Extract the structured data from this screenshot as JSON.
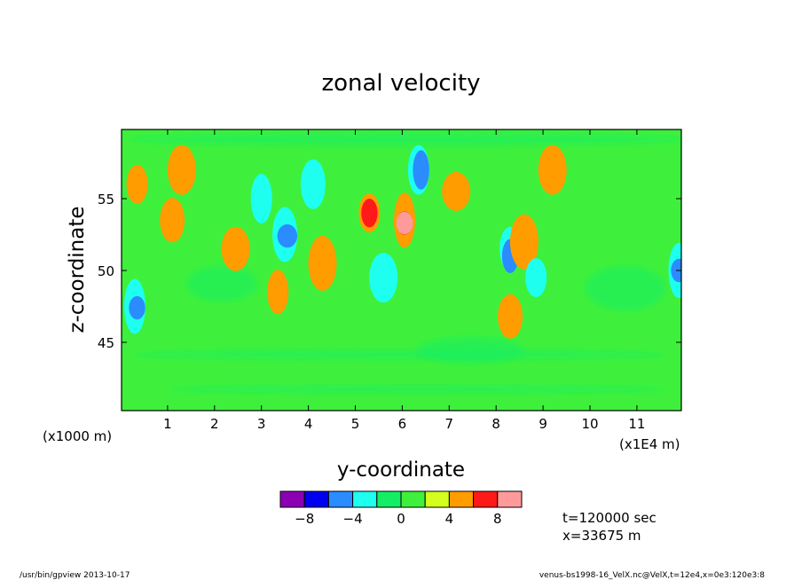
{
  "footer": {
    "left": "/usr/bin/gpview  2013-10-17",
    "right": "venus-bs1998-16_VelX.nc@VelX,t=12e4,x=0e3:120e3:8"
  },
  "chart_data": {
    "type": "heatmap",
    "title": "zonal velocity",
    "xlabel": "y-coordinate",
    "ylabel": "z-coordinate",
    "x_unit_left": "(x1000 m)",
    "x_unit_right": "(x1E4 m)",
    "x_ticks": [
      "1",
      "2",
      "3",
      "4",
      "5",
      "6",
      "7",
      "8",
      "9",
      "10",
      "11"
    ],
    "y_ticks": [
      "45",
      "50",
      "55"
    ],
    "ylim": [
      40,
      59.5
    ],
    "time_label": "t=120000 sec",
    "x_label_info": "x=33675 m",
    "colorbar": {
      "levels": [
        -10,
        -8,
        -6,
        -4,
        -2,
        0,
        2,
        4,
        6,
        8,
        10
      ],
      "tick_labels": [
        "-8",
        "-4",
        "0",
        "4",
        "8"
      ],
      "colors": [
        "#8c00b4",
        "#0000f0",
        "#2a8cff",
        "#1efff0",
        "#14ee64",
        "#3ef03c",
        "#d4ff1e",
        "#ff9c00",
        "#ff1a1a",
        "#ff9a9a"
      ]
    },
    "background_color": "#3ef03c",
    "features": [
      {
        "y": 0.35,
        "z": 56.0,
        "value": 4
      },
      {
        "y": 1.1,
        "z": 53.5,
        "value": 4
      },
      {
        "y": 1.3,
        "z": 57.0,
        "value": 4
      },
      {
        "y": 0.3,
        "z": 47.5,
        "value": -4
      },
      {
        "y": 0.35,
        "z": 47.4,
        "value": -6
      },
      {
        "y": 2.45,
        "z": 51.5,
        "value": 4
      },
      {
        "y": 3.0,
        "z": 55.0,
        "value": -4
      },
      {
        "y": 3.5,
        "z": 52.5,
        "value": -4
      },
      {
        "y": 3.55,
        "z": 52.4,
        "value": -6
      },
      {
        "y": 3.35,
        "z": 48.5,
        "value": 4
      },
      {
        "y": 4.1,
        "z": 56.0,
        "value": -4
      },
      {
        "y": 4.3,
        "z": 50.5,
        "value": 4
      },
      {
        "y": 5.3,
        "z": 54.0,
        "value": 4
      },
      {
        "y": 5.3,
        "z": 54.0,
        "value": 6
      },
      {
        "y": 5.6,
        "z": 49.5,
        "value": -4
      },
      {
        "y": 6.05,
        "z": 53.5,
        "value": 4
      },
      {
        "y": 6.05,
        "z": 53.3,
        "value": 6
      },
      {
        "y": 6.05,
        "z": 53.3,
        "value": 8
      },
      {
        "y": 6.35,
        "z": 57.0,
        "value": -4
      },
      {
        "y": 6.4,
        "z": 57.0,
        "value": -6
      },
      {
        "y": 7.15,
        "z": 55.5,
        "value": 4
      },
      {
        "y": 8.3,
        "z": 51.5,
        "value": -4
      },
      {
        "y": 8.3,
        "z": 51.0,
        "value": -6
      },
      {
        "y": 8.6,
        "z": 52.0,
        "value": 4
      },
      {
        "y": 8.85,
        "z": 49.5,
        "value": -4
      },
      {
        "y": 8.3,
        "z": 46.8,
        "value": 4
      },
      {
        "y": 9.2,
        "z": 57.0,
        "value": 4
      },
      {
        "y": 11.9,
        "z": 50.0,
        "value": -4
      },
      {
        "y": 11.9,
        "z": 50.0,
        "value": -6
      }
    ]
  }
}
